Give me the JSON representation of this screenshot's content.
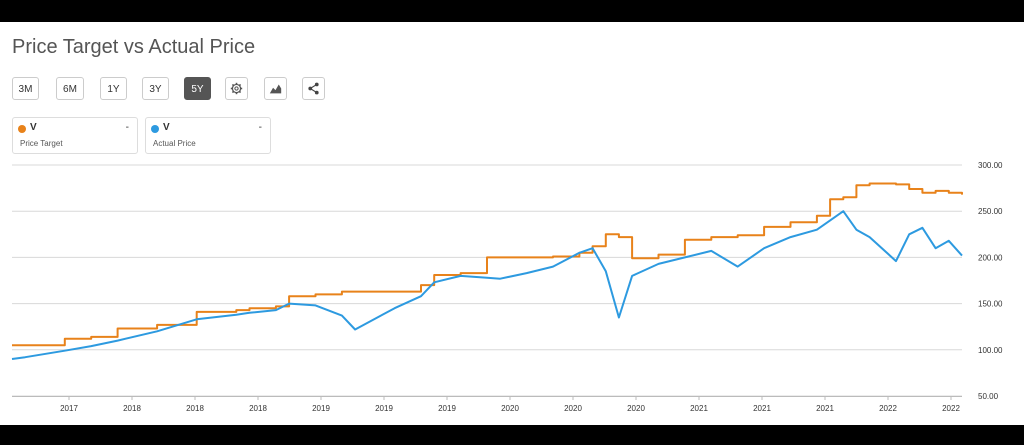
{
  "title": "Price Target vs Actual Price",
  "range_buttons": [
    "3M",
    "6M",
    "1Y",
    "3Y",
    "5Y"
  ],
  "active_range": "5Y",
  "toolbar_icons": [
    "gear-icon",
    "chart-type-icon",
    "share-icon"
  ],
  "legend": [
    {
      "ticker": "V",
      "value": "-",
      "label": "Price Target",
      "color": "#e8821a"
    },
    {
      "ticker": "V",
      "value": "-",
      "label": "Actual Price",
      "color": "#2d9ae0"
    }
  ],
  "chart_data": {
    "type": "line",
    "ylim": [
      50,
      300
    ],
    "y_ticks": [
      "50.00",
      "100.00",
      "150.00",
      "200.00",
      "250.00",
      "300.00"
    ],
    "x_tick_labels": [
      "2017",
      "2018",
      "2018",
      "2018",
      "2019",
      "2019",
      "2019",
      "2020",
      "2020",
      "2020",
      "2021",
      "2021",
      "2021",
      "2022",
      "2022"
    ],
    "x": [
      "2016-05",
      "2016-06",
      "2016-09",
      "2016-11",
      "2017-01",
      "2017-04",
      "2017-07",
      "2017-10",
      "2017-11",
      "2018-01",
      "2018-02",
      "2018-04",
      "2018-06",
      "2018-07",
      "2018-10",
      "2018-12",
      "2019-01",
      "2019-03",
      "2019-05",
      "2019-06",
      "2019-08",
      "2019-10",
      "2019-12",
      "2020-01",
      "2020-02",
      "2020-03",
      "2020-04",
      "2020-06",
      "2020-08",
      "2020-10",
      "2020-12",
      "2021-02",
      "2021-04",
      "2021-06",
      "2021-07",
      "2021-08",
      "2021-09",
      "2021-10",
      "2021-12",
      "2022-01",
      "2022-02",
      "2022-03",
      "2022-04",
      "2022-05"
    ],
    "series": [
      {
        "name": "Price Target",
        "color": "#e8821a",
        "values": [
          105,
          105,
          112,
          114,
          123,
          127,
          141,
          143,
          145,
          147,
          158,
          160,
          163,
          163,
          163,
          170,
          181,
          183,
          200,
          200,
          200,
          201,
          205,
          212,
          225,
          222,
          199,
          203,
          219,
          222,
          224,
          233,
          238,
          245,
          263,
          265,
          278,
          280,
          279,
          274,
          270,
          272,
          270,
          268
        ]
      },
      {
        "name": "Actual Price",
        "color": "#2d9ae0",
        "values": [
          90,
          92,
          99,
          104,
          110,
          120,
          133,
          138,
          140,
          143,
          150,
          148,
          137,
          122,
          145,
          158,
          173,
          180,
          178,
          177,
          183,
          190,
          205,
          210,
          185,
          135,
          180,
          193,
          200,
          207,
          190,
          210,
          222,
          230,
          240,
          250,
          230,
          222,
          196,
          225,
          232,
          210,
          218,
          202
        ]
      }
    ]
  }
}
